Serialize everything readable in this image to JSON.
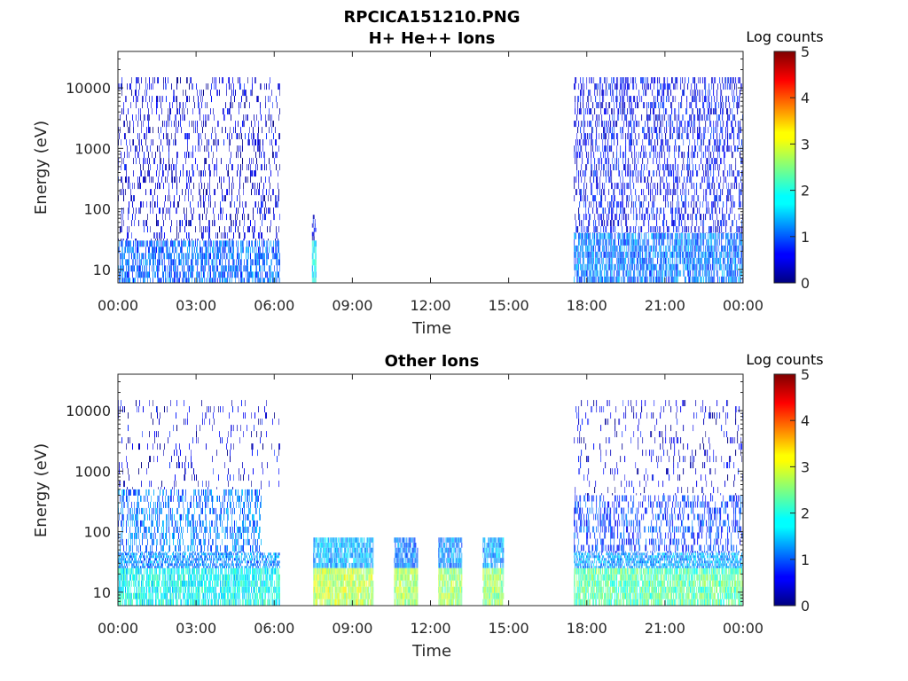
{
  "figure": {
    "title": "RPCICA151210.PNG"
  },
  "chart_data": [
    {
      "type": "heatmap",
      "title": "H+ He++ Ions",
      "xlabel": "Time",
      "ylabel": "Energy (eV)",
      "x_ticks": [
        "00:00",
        "03:00",
        "06:00",
        "09:00",
        "12:00",
        "15:00",
        "18:00",
        "21:00",
        "00:00"
      ],
      "xlim_hours": [
        0,
        24
      ],
      "y_scale": "log",
      "y_ticks": [
        "10",
        "100",
        "1000",
        "10000"
      ],
      "ylim": [
        6,
        40000
      ],
      "colorbar": {
        "label": "Log counts",
        "ticks": [
          "0",
          "1",
          "2",
          "3",
          "4",
          "5"
        ],
        "range": [
          0,
          5
        ],
        "colormap": "jet"
      },
      "regions": [
        {
          "t_start_h": 0.0,
          "t_end_h": 6.2,
          "e_min_ev": 6,
          "e_max_ev": 30,
          "log_counts": 1.1,
          "density": 0.65
        },
        {
          "t_start_h": 0.0,
          "t_end_h": 6.2,
          "e_min_ev": 30,
          "e_max_ev": 15000,
          "log_counts": 0.4,
          "density": 0.22
        },
        {
          "t_start_h": 7.45,
          "t_end_h": 7.6,
          "e_min_ev": 6,
          "e_max_ev": 30,
          "log_counts": 1.8,
          "density": 0.9
        },
        {
          "t_start_h": 7.45,
          "t_end_h": 7.6,
          "e_min_ev": 30,
          "e_max_ev": 80,
          "log_counts": 0.5,
          "density": 0.4
        },
        {
          "t_start_h": 17.5,
          "t_end_h": 24.0,
          "e_min_ev": 6,
          "e_max_ev": 40,
          "log_counts": 1.2,
          "density": 0.75
        },
        {
          "t_start_h": 17.5,
          "t_end_h": 24.0,
          "e_min_ev": 40,
          "e_max_ev": 15000,
          "log_counts": 0.6,
          "density": 0.35
        }
      ]
    },
    {
      "type": "heatmap",
      "title": "Other Ions",
      "xlabel": "Time",
      "ylabel": "Energy (eV)",
      "x_ticks": [
        "00:00",
        "03:00",
        "06:00",
        "09:00",
        "12:00",
        "15:00",
        "18:00",
        "21:00",
        "00:00"
      ],
      "xlim_hours": [
        0,
        24
      ],
      "y_scale": "log",
      "y_ticks": [
        "10",
        "100",
        "1000",
        "10000"
      ],
      "ylim": [
        6,
        40000
      ],
      "colorbar": {
        "label": "Log counts",
        "ticks": [
          "0",
          "1",
          "2",
          "3",
          "4",
          "5"
        ],
        "range": [
          0,
          5
        ],
        "colormap": "jet"
      },
      "regions": [
        {
          "t_start_h": 0.0,
          "t_end_h": 6.2,
          "e_min_ev": 6,
          "e_max_ev": 25,
          "log_counts": 1.9,
          "density": 0.8
        },
        {
          "t_start_h": 0.0,
          "t_end_h": 6.2,
          "e_min_ev": 25,
          "e_max_ev": 45,
          "log_counts": 1.3,
          "density": 0.7
        },
        {
          "t_start_h": 0.0,
          "t_end_h": 5.5,
          "e_min_ev": 45,
          "e_max_ev": 500,
          "log_counts": 1.2,
          "density": 0.4
        },
        {
          "t_start_h": 0.0,
          "t_end_h": 6.2,
          "e_min_ev": 500,
          "e_max_ev": 15000,
          "log_counts": 0.4,
          "density": 0.08
        },
        {
          "t_start_h": 7.5,
          "t_end_h": 9.8,
          "e_min_ev": 6,
          "e_max_ev": 25,
          "log_counts": 2.8,
          "density": 0.95
        },
        {
          "t_start_h": 7.5,
          "t_end_h": 9.8,
          "e_min_ev": 25,
          "e_max_ev": 80,
          "log_counts": 1.5,
          "density": 0.85
        },
        {
          "t_start_h": 10.6,
          "t_end_h": 11.5,
          "e_min_ev": 6,
          "e_max_ev": 25,
          "log_counts": 2.7,
          "density": 0.95
        },
        {
          "t_start_h": 10.6,
          "t_end_h": 11.5,
          "e_min_ev": 25,
          "e_max_ev": 80,
          "log_counts": 1.2,
          "density": 0.85
        },
        {
          "t_start_h": 12.3,
          "t_end_h": 13.2,
          "e_min_ev": 6,
          "e_max_ev": 25,
          "log_counts": 2.6,
          "density": 0.95
        },
        {
          "t_start_h": 12.3,
          "t_end_h": 13.2,
          "e_min_ev": 25,
          "e_max_ev": 80,
          "log_counts": 1.3,
          "density": 0.85
        },
        {
          "t_start_h": 14.0,
          "t_end_h": 14.8,
          "e_min_ev": 6,
          "e_max_ev": 25,
          "log_counts": 2.6,
          "density": 0.95
        },
        {
          "t_start_h": 14.0,
          "t_end_h": 14.8,
          "e_min_ev": 25,
          "e_max_ev": 80,
          "log_counts": 1.4,
          "density": 0.85
        },
        {
          "t_start_h": 17.5,
          "t_end_h": 24.0,
          "e_min_ev": 6,
          "e_max_ev": 25,
          "log_counts": 2.3,
          "density": 0.85
        },
        {
          "t_start_h": 17.5,
          "t_end_h": 24.0,
          "e_min_ev": 25,
          "e_max_ev": 45,
          "log_counts": 1.4,
          "density": 0.75
        },
        {
          "t_start_h": 17.5,
          "t_end_h": 24.0,
          "e_min_ev": 45,
          "e_max_ev": 400,
          "log_counts": 0.9,
          "density": 0.35
        },
        {
          "t_start_h": 17.5,
          "t_end_h": 24.0,
          "e_min_ev": 400,
          "e_max_ev": 15000,
          "log_counts": 0.4,
          "density": 0.1
        }
      ]
    }
  ]
}
